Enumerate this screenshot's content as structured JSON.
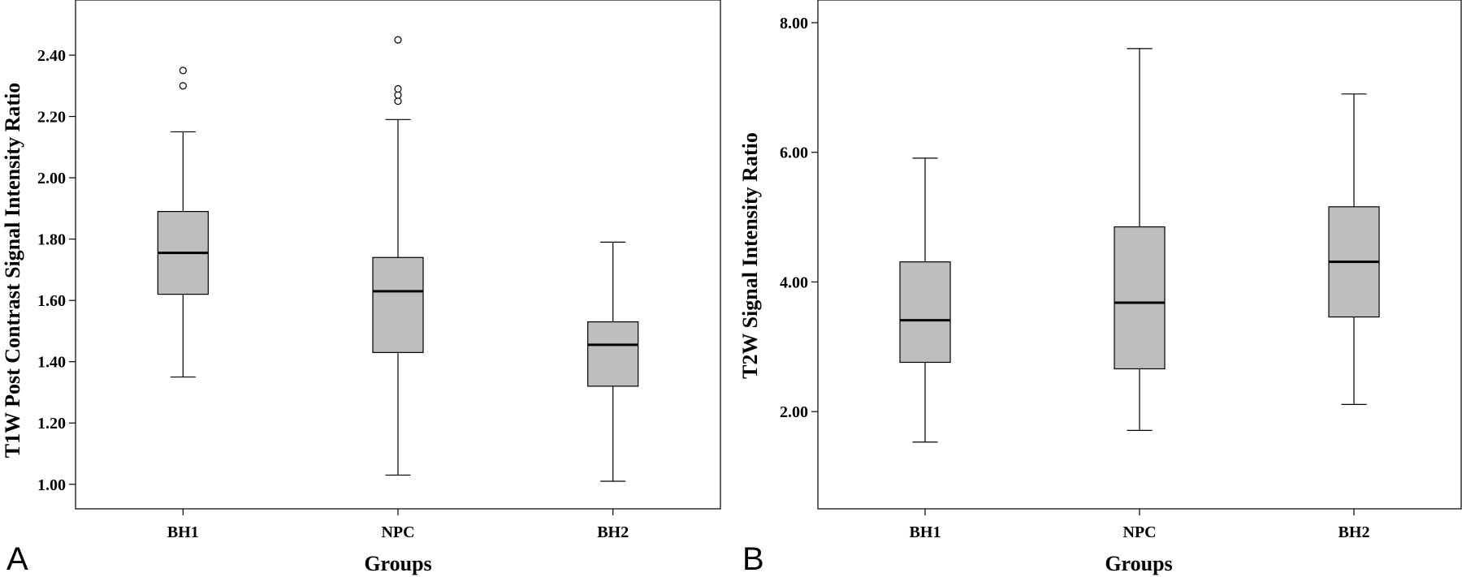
{
  "chart_data": [
    {
      "type": "box",
      "panel_label": "A",
      "xlabel": "Groups",
      "ylabel": "T1W Post Contrast Signal Intensity Ratio",
      "categories": [
        "BH1",
        "NPC",
        "BH2"
      ],
      "ylim": [
        0.92,
        2.58
      ],
      "yticks": [
        1.0,
        1.2,
        1.4,
        1.6,
        1.8,
        2.0,
        2.2,
        2.4
      ],
      "ytick_labels": [
        "1.00",
        "1.20",
        "1.40",
        "1.60",
        "1.80",
        "2.00",
        "2.20",
        "2.40"
      ],
      "boxes": [
        {
          "group": "BH1",
          "min": 1.35,
          "q1": 1.62,
          "median": 1.755,
          "q3": 1.89,
          "max": 2.15,
          "outliers": [
            2.3,
            2.35
          ]
        },
        {
          "group": "NPC",
          "min": 1.03,
          "q1": 1.43,
          "median": 1.63,
          "q3": 1.74,
          "max": 2.19,
          "outliers": [
            2.25,
            2.27,
            2.29,
            2.45
          ]
        },
        {
          "group": "BH2",
          "min": 1.01,
          "q1": 1.32,
          "median": 1.455,
          "q3": 1.53,
          "max": 1.79,
          "outliers": []
        }
      ],
      "box_fill": "#bebebe",
      "grid": false
    },
    {
      "type": "box",
      "panel_label": "B",
      "xlabel": "Groups",
      "ylabel": "T2W Signal Intensity Ratio",
      "categories": [
        "BH1",
        "NPC",
        "BH2"
      ],
      "ylim": [
        0.5,
        8.35
      ],
      "yticks": [
        2.0,
        4.0,
        6.0,
        8.0
      ],
      "ytick_labels": [
        "2.00",
        "4.00",
        "6.00",
        "8.00"
      ],
      "boxes": [
        {
          "group": "BH1",
          "min": 1.53,
          "q1": 2.76,
          "median": 3.41,
          "q3": 4.31,
          "max": 5.91,
          "outliers": []
        },
        {
          "group": "NPC",
          "min": 1.71,
          "q1": 2.66,
          "median": 3.68,
          "q3": 4.85,
          "max": 7.6,
          "outliers": []
        },
        {
          "group": "BH2",
          "min": 2.11,
          "q1": 3.46,
          "median": 4.31,
          "q3": 5.16,
          "max": 6.9,
          "outliers": []
        }
      ],
      "box_fill": "#bebebe",
      "grid": false
    }
  ]
}
